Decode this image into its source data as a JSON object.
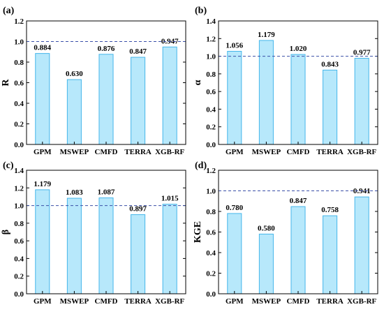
{
  "figure": {
    "reference_color": "#3a4fa8",
    "bar_fill": "#b7e8fb",
    "bar_stroke": "#45b6ea",
    "categories": [
      "GPM",
      "MSWEP",
      "CMFD",
      "TERRA",
      "XGB-RF"
    ]
  },
  "chart_data": [
    {
      "panel": "(a)",
      "type": "bar",
      "ylabel": "R",
      "categories": [
        "GPM",
        "MSWEP",
        "CMFD",
        "TERRA",
        "XGB-RF"
      ],
      "values": [
        0.884,
        0.63,
        0.876,
        0.847,
        0.947
      ],
      "value_labels": [
        "0.884",
        "0.630",
        "0.876",
        "0.847",
        "0.947"
      ],
      "ylim": [
        0,
        1.2
      ],
      "yticks": [
        0.0,
        0.2,
        0.4,
        0.6,
        0.8,
        1.0,
        1.2
      ],
      "ytick_labels": [
        "0.0",
        "0.2",
        "0.4",
        "0.6",
        "0.8",
        "1.0",
        "1.2"
      ],
      "reference_line": 1.0
    },
    {
      "panel": "(b)",
      "type": "bar",
      "ylabel": "α",
      "categories": [
        "GPM",
        "MSWEP",
        "CMFD",
        "TERRA",
        "XGB-RF"
      ],
      "values": [
        1.056,
        1.179,
        1.02,
        0.843,
        0.977
      ],
      "value_labels": [
        "1.056",
        "1.179",
        "1.020",
        "0.843",
        "0.977"
      ],
      "ylim": [
        0,
        1.4
      ],
      "yticks": [
        0.0,
        0.2,
        0.4,
        0.6,
        0.8,
        1.0,
        1.2,
        1.4
      ],
      "ytick_labels": [
        "0.0",
        "0.2",
        "0.4",
        "0.6",
        "0.8",
        "1.0",
        "1.2",
        "1.4"
      ],
      "reference_line": 1.0
    },
    {
      "panel": "(c)",
      "type": "bar",
      "ylabel": "β",
      "categories": [
        "GPM",
        "MSWEP",
        "CMFD",
        "TERRA",
        "XGB-RF"
      ],
      "values": [
        1.179,
        1.083,
        1.087,
        0.897,
        1.015
      ],
      "value_labels": [
        "1.179",
        "1.083",
        "1.087",
        "0.897",
        "1.015"
      ],
      "ylim": [
        0,
        1.4
      ],
      "yticks": [
        0.0,
        0.2,
        0.4,
        0.6,
        0.8,
        1.0,
        1.2,
        1.4
      ],
      "ytick_labels": [
        "0.0",
        "0.2",
        "0.4",
        "0.6",
        "0.8",
        "1.0",
        "1.2",
        "1.4"
      ],
      "reference_line": 1.0
    },
    {
      "panel": "(d)",
      "type": "bar",
      "ylabel": "KGE",
      "categories": [
        "GPM",
        "MSWEP",
        "CMFD",
        "TERRA",
        "XGB-RF"
      ],
      "values": [
        0.78,
        0.58,
        0.847,
        0.758,
        0.941
      ],
      "value_labels": [
        "0.780",
        "0.580",
        "0.847",
        "0.758",
        "0.941"
      ],
      "ylim": [
        0,
        1.2
      ],
      "yticks": [
        0.0,
        0.2,
        0.4,
        0.6,
        0.8,
        1.0,
        1.2
      ],
      "ytick_labels": [
        "0.0",
        "0.2",
        "0.4",
        "0.6",
        "0.8",
        "1.0",
        "1.2"
      ],
      "reference_line": 1.0
    }
  ]
}
